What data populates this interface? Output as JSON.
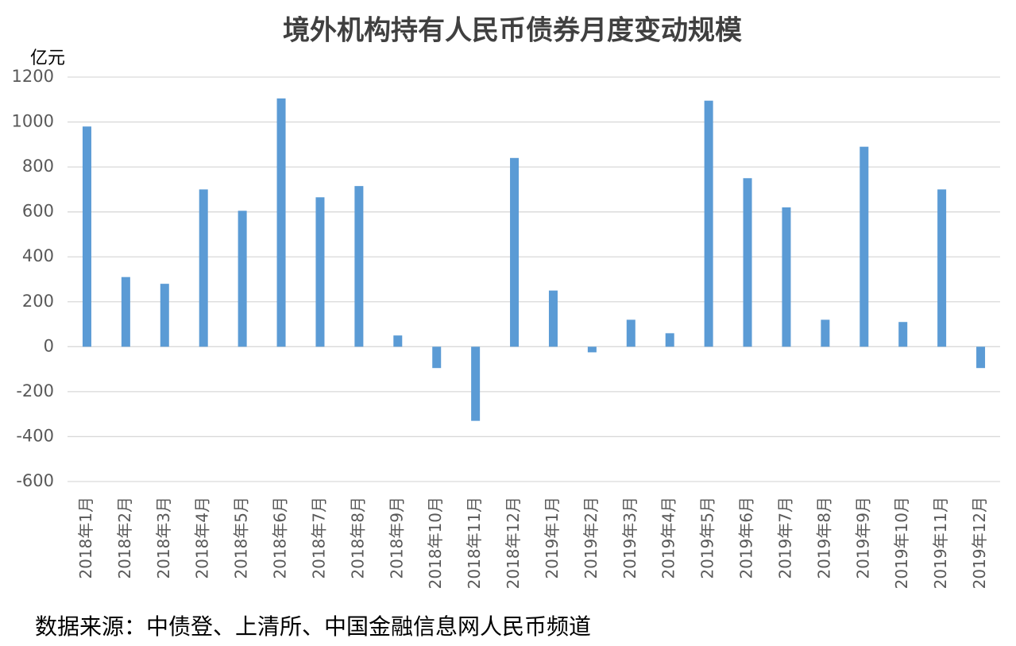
{
  "chart_data": {
    "type": "bar",
    "title": "境外机构持有人民币债券月度变动规模",
    "y_label": "亿元",
    "source": "数据来源：中债登、上清所、中国金融信息网人民币频道",
    "categories": [
      "2018年1月",
      "2018年2月",
      "2018年3月",
      "2018年4月",
      "2018年5月",
      "2018年6月",
      "2018年7月",
      "2018年8月",
      "2018年9月",
      "2018年10月",
      "2018年11月",
      "2018年12月",
      "2019年1月",
      "2019年2月",
      "2019年3月",
      "2019年4月",
      "2019年5月",
      "2019年6月",
      "2019年7月",
      "2019年8月",
      "2019年9月",
      "2019年10月",
      "2019年11月",
      "2019年12月"
    ],
    "values": [
      980,
      310,
      280,
      700,
      605,
      1105,
      665,
      715,
      50,
      -95,
      -330,
      840,
      250,
      -25,
      120,
      60,
      1095,
      750,
      620,
      120,
      890,
      110,
      700,
      -95
    ],
    "color": "#5b9bd5",
    "ylim": [
      -600,
      1200
    ],
    "yticks": [
      -600,
      -400,
      -200,
      0,
      200,
      400,
      600,
      800,
      1000,
      1200
    ],
    "grid": true
  }
}
